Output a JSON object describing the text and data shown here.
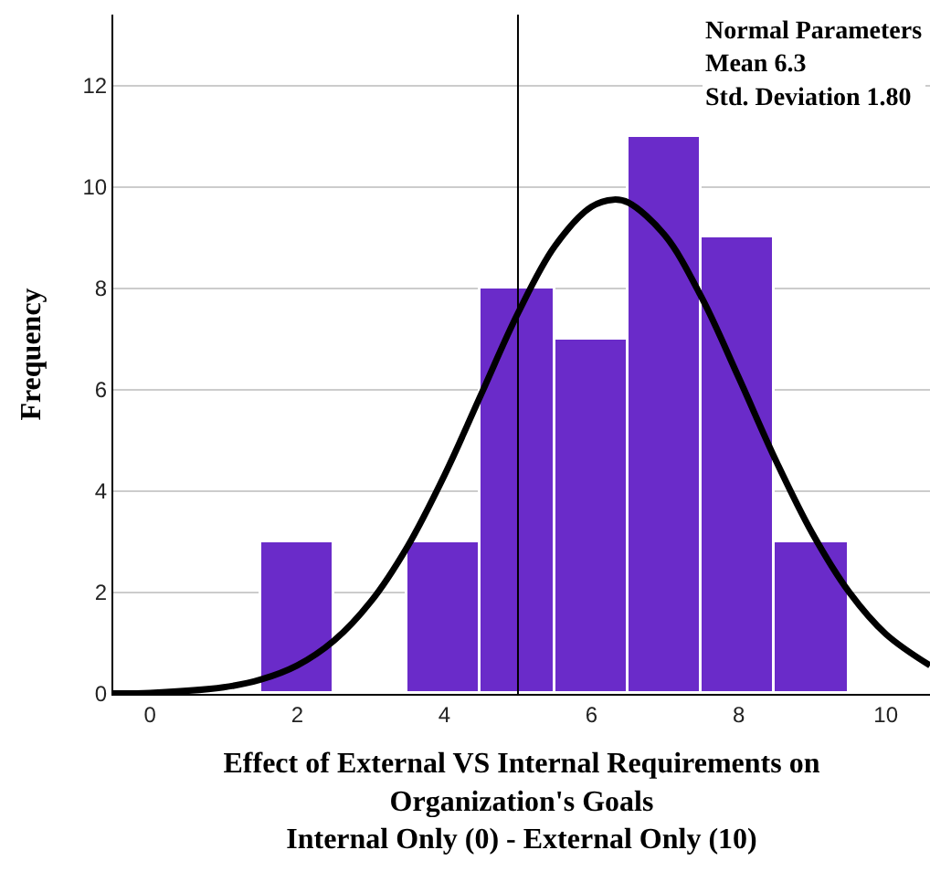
{
  "chart_data": {
    "type": "histogram",
    "xlabel": "Effect of External VS Internal Requirements on Organization's Goals\nInternal Only (0) - External Only (10)",
    "ylabel": "Frequency",
    "bins": [
      1.5,
      2.5,
      3.5,
      4.5,
      5.5,
      6.5,
      7.5,
      8.5,
      9.5
    ],
    "values": [
      3,
      0,
      3,
      8,
      7,
      11,
      9,
      3
    ],
    "color": "#6a2bc9",
    "series": [
      {
        "type": "line",
        "color": "#000000",
        "x": [
          -0.5,
          0,
          1,
          1.5,
          2,
          2.5,
          3,
          3.5,
          4,
          4.5,
          5,
          5.5,
          6,
          6.3,
          6.5,
          7,
          7.5,
          8,
          8.5,
          9,
          9.5,
          10,
          10.6
        ],
        "values": [
          0.01,
          0.02,
          0.13,
          0.28,
          0.56,
          1.05,
          1.82,
          2.91,
          4.31,
          5.91,
          7.51,
          8.83,
          9.61,
          9.75,
          9.69,
          9.04,
          7.81,
          6.24,
          4.62,
          3.17,
          2.01,
          1.18,
          0.56
        ]
      }
    ],
    "ref_lines": [
      {
        "axis": "x",
        "value": 5,
        "color": "#000000"
      }
    ],
    "annotations": [
      "Normal Parameters\nMean 6.3\nStd. Deviation 1.80"
    ],
    "xlim": [
      -0.5,
      10.6
    ],
    "xticks": [
      0,
      2,
      4,
      6,
      8,
      10
    ],
    "ylim": [
      0,
      13.4
    ],
    "yticks": [
      0,
      2,
      4,
      6,
      8,
      10,
      12
    ],
    "grid": "y"
  }
}
